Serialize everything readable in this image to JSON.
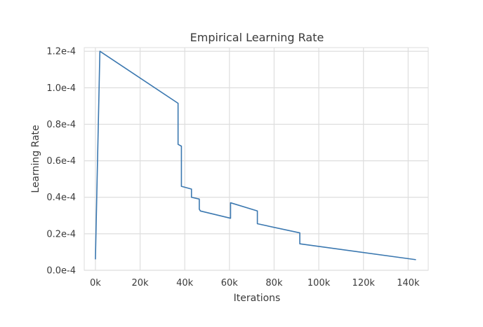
{
  "colors": {
    "background": "#ffffff",
    "plot_background": "#ffffff",
    "grid": "#dedede",
    "line": "#3b78b0",
    "text": "#3a3a3a"
  },
  "chart_data": {
    "type": "line",
    "title": "Empirical Learning Rate",
    "xlabel": "Iterations",
    "ylabel": "Learning Rate",
    "xlim": [
      -5000,
      149000
    ],
    "ylim": [
      0,
      0.000122
    ],
    "grid": true,
    "xticks": [
      0,
      20000,
      40000,
      60000,
      80000,
      100000,
      120000,
      140000
    ],
    "xtick_labels": [
      "0k",
      "20k",
      "40k",
      "60k",
      "80k",
      "100k",
      "120k",
      "140k"
    ],
    "yticks": [
      0,
      2e-05,
      4e-05,
      6e-05,
      8e-05,
      0.0001,
      0.00012
    ],
    "ytick_labels": [
      "0.0e-4",
      "0.2e-4",
      "0.4e-4",
      "0.6e-4",
      "0.8e-4",
      "1.0e-4",
      "1.2e-4"
    ],
    "series": [
      {
        "name": "Learning Rate",
        "x": [
          0,
          2000,
          37000,
          37000,
          38500,
          38500,
          40000,
          43000,
          43000,
          46500,
          46500,
          47000,
          60500,
          60500,
          72500,
          72500,
          91500,
          91500,
          143500
        ],
        "y": [
          6e-06,
          0.00012,
          9.15e-05,
          6.9e-05,
          6.8e-05,
          4.6e-05,
          4.55e-05,
          4.45e-05,
          4e-05,
          3.9e-05,
          3.35e-05,
          3.25e-05,
          2.85e-05,
          3.7e-05,
          3.25e-05,
          2.55e-05,
          2.05e-05,
          1.45e-05,
          5.8e-06
        ]
      }
    ]
  }
}
